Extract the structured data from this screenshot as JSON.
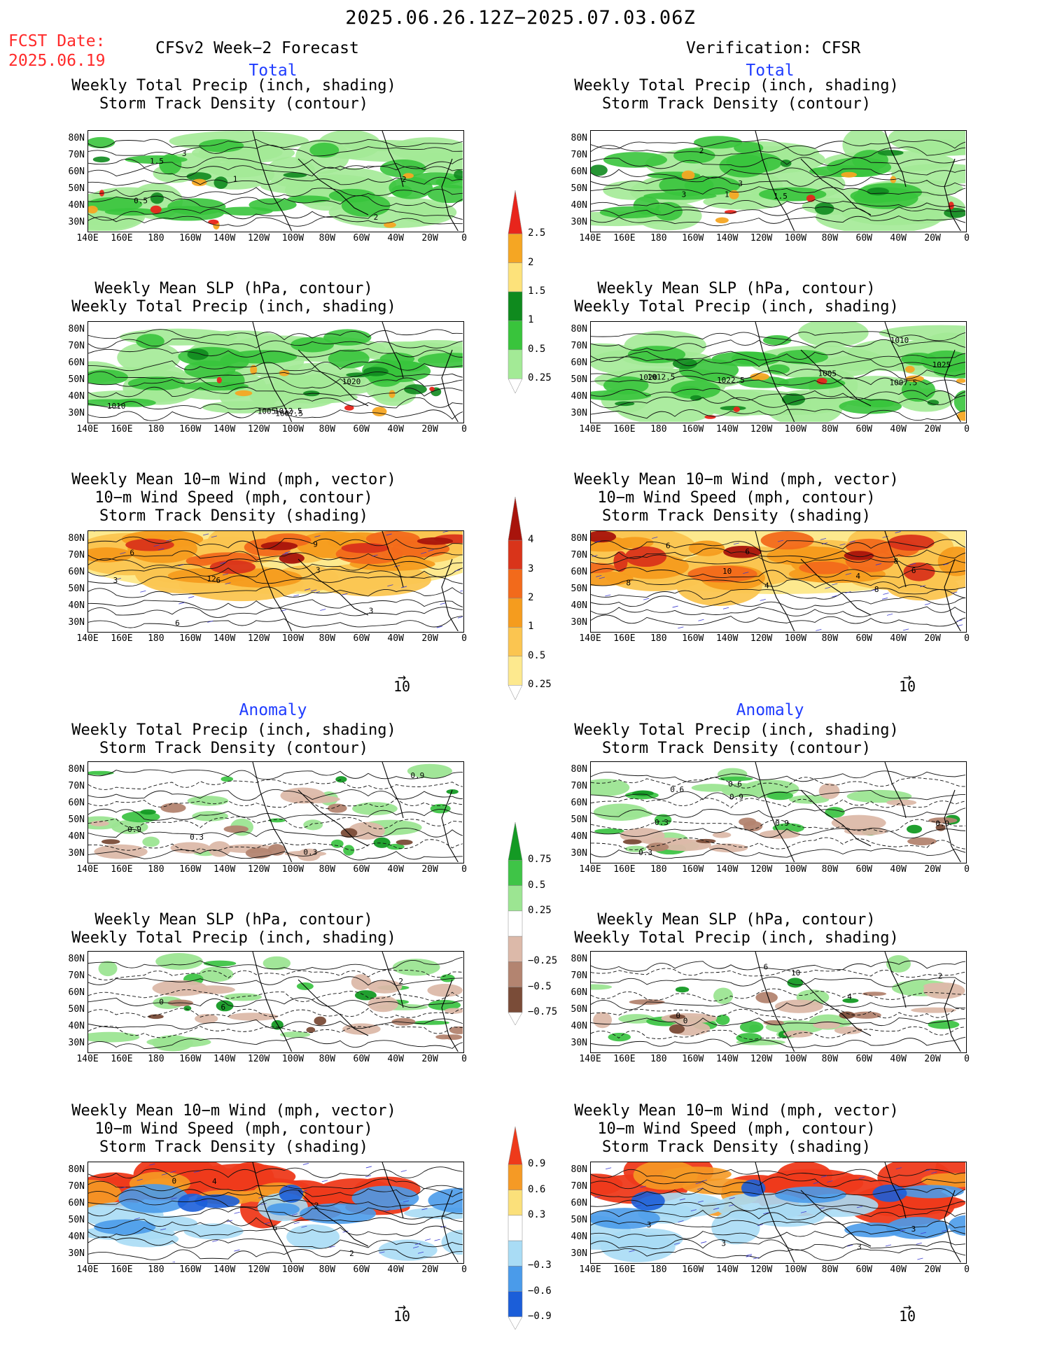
{
  "header": {
    "title": "2025.06.26.12Z−2025.07.03.06Z",
    "fcst_label": "FCST Date:",
    "fcst_date": "2025.06.19",
    "left_title": "CFSv2 Week−2 Forecast",
    "right_title": "Verification: CFSR",
    "total_label": "Total",
    "anomaly_label": "Anomaly"
  },
  "titles": {
    "precip_storm": [
      "Weekly Total Precip (inch, shading)",
      "Storm Track Density (contour)"
    ],
    "slp_precip": [
      "Weekly Mean SLP (hPa, contour)",
      "Weekly Total Precip (inch, shading)"
    ],
    "wind_storm": [
      "Weekly Mean 10−m Wind (mph, vector)",
      "10−m Wind Speed (mph, contour)",
      "Storm Track Density (shading)"
    ]
  },
  "axes": {
    "lat": [
      "80N",
      "70N",
      "60N",
      "50N",
      "40N",
      "30N"
    ],
    "lon": [
      "140E",
      "160E",
      "180",
      "160W",
      "140W",
      "120W",
      "100W",
      "80W",
      "60W",
      "40W",
      "20W",
      "0"
    ]
  },
  "vector_ref": {
    "arrow": "→",
    "value": "10"
  },
  "colorbars": {
    "total_precip": {
      "labels": [
        "2.5",
        "2",
        "1.5",
        "1",
        "0.5",
        "0.25"
      ],
      "colors": [
        "#e8251c",
        "#f5a623",
        "#fde27a",
        "#0f8a1e",
        "#39c43c",
        "#a3ea96"
      ]
    },
    "total_storm": {
      "labels": [
        "4",
        "3",
        "2",
        "1",
        "0.5",
        "0.25"
      ],
      "colors": [
        "#a8140c",
        "#d9341a",
        "#f26a1b",
        "#f59c1e",
        "#fbc550",
        "#fde98e"
      ]
    },
    "anom_precip": {
      "labels": [
        "0.75",
        "0.5",
        "0.25",
        "−0.25",
        "−0.5",
        "−0.75"
      ],
      "colors": [
        "#149a24",
        "#3fc447",
        "#9ce592",
        "#ffffff",
        "#dcb9a9",
        "#b38470",
        "#7a4c38"
      ]
    },
    "anom_storm": {
      "labels": [
        "0.9",
        "0.6",
        "0.3",
        "−0.3",
        "−0.6",
        "−0.9"
      ],
      "colors": [
        "#ee3a1b",
        "#f59a25",
        "#fbe07a",
        "#ffffff",
        "#a9dcf5",
        "#4a9bea",
        "#1b5ed9"
      ]
    }
  },
  "panels": {
    "fc_total_ps": {
      "labels": [
        "3",
        "2",
        "1",
        "2",
        "0.5",
        "1.5"
      ]
    },
    "fc_total_slp": {
      "labels": [
        "1007.5",
        "1005",
        "1010",
        "1012.5",
        "1020"
      ]
    },
    "fc_total_wind": {
      "labels": [
        "3",
        "3",
        "3",
        "6",
        "6",
        "12",
        "9",
        "6"
      ]
    },
    "vf_total_ps": {
      "labels": [
        "1",
        "2",
        "3",
        "3",
        "1.5"
      ]
    },
    "vf_total_slp": {
      "labels": [
        "1005",
        "1007.5",
        "1010",
        "1020",
        "1012.5",
        "1025",
        "1022.5"
      ]
    },
    "vf_total_wind": {
      "labels": [
        "6",
        "6",
        "4",
        "8",
        "4",
        "8",
        "10",
        "6",
        "8"
      ]
    },
    "fc_anom_ps": {
      "labels": [
        "0.9",
        "0.3",
        "0.3",
        "0.9"
      ]
    },
    "fc_anom_slp": {
      "labels": [
        "6",
        "0",
        "2"
      ]
    },
    "fc_anom_wind": {
      "labels": [
        "2",
        "2",
        "6",
        "4",
        "0"
      ]
    },
    "vf_anom_ps": {
      "labels": [
        "0.6",
        "0.9",
        "0.3",
        "0.9",
        "0.9",
        "0.3",
        "0.6"
      ]
    },
    "vf_anom_slp": {
      "labels": [
        "6",
        "10",
        "4",
        "0",
        "2",
        "0"
      ]
    },
    "vf_anom_wind": {
      "labels": [
        "3",
        "3",
        "3",
        "3"
      ]
    }
  }
}
